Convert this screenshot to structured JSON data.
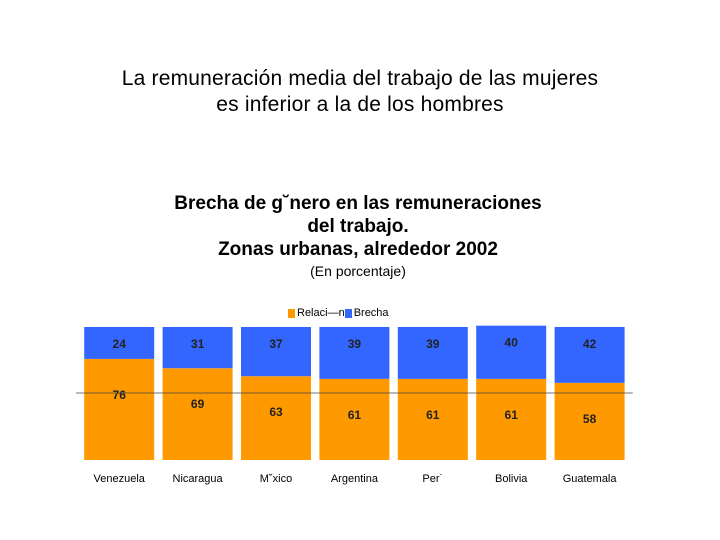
{
  "slide": {
    "title_line1": "La remuneración media del trabajo de las mujeres",
    "title_line2": "es inferior a la de los hombres"
  },
  "chart_data": {
    "type": "bar",
    "stacked": true,
    "title_lines": [
      "Brecha de g˘nero en las remuneraciones",
      "del trabajo.",
      "Zonas urbanas, alrededor 2002"
    ],
    "subtitle": "(En porcentaje)",
    "categories": [
      "Venezuela",
      "Nicaragua",
      "M˘xico",
      "Argentina",
      "Per˙",
      "Bolivia",
      "Guatemala"
    ],
    "series": [
      {
        "name": "Relaci—n",
        "values": [
          76,
          69,
          63,
          61,
          61,
          61,
          58
        ],
        "color": "#FF9900"
      },
      {
        "name": "Brecha",
        "values": [
          24,
          31,
          37,
          39,
          39,
          40,
          42
        ],
        "color": "#3366FF"
      }
    ],
    "ylim": [
      0,
      100
    ],
    "legend_position": "top",
    "grid": false
  }
}
